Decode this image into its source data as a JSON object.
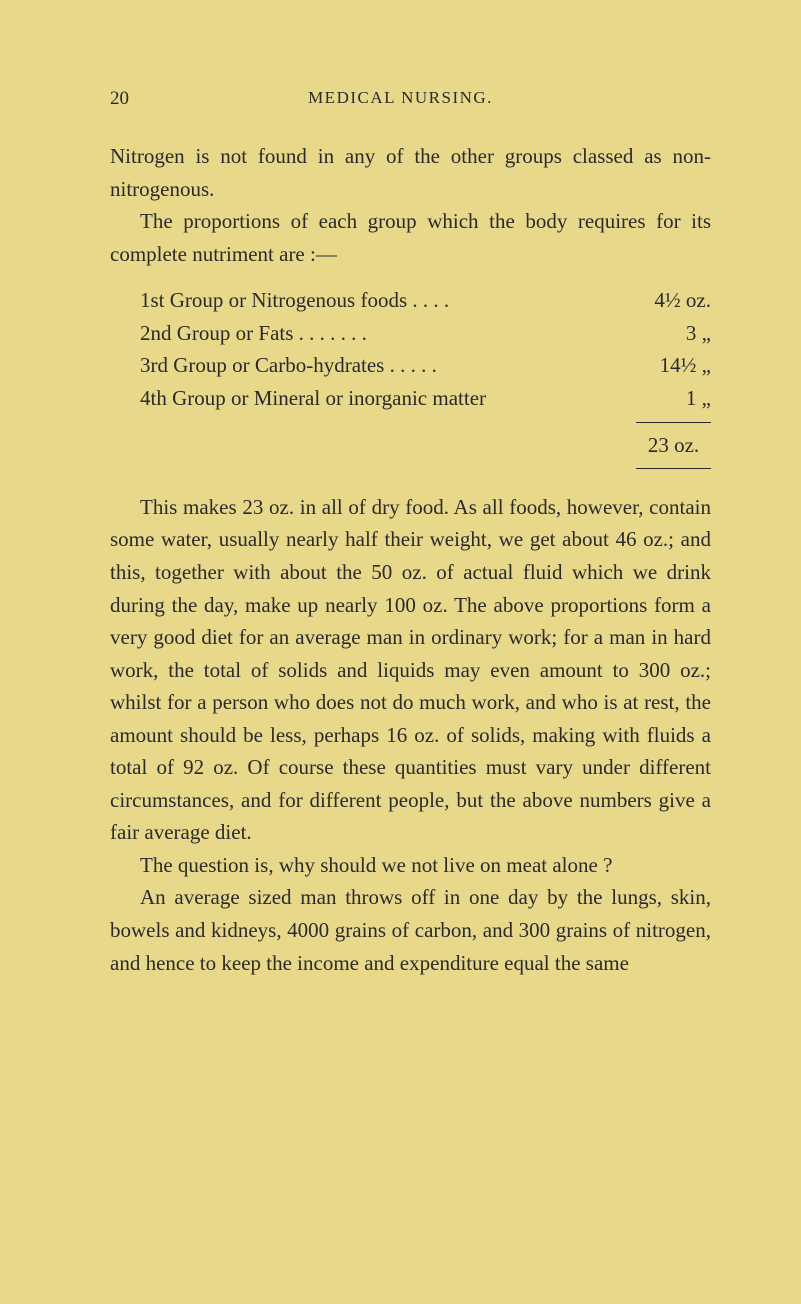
{
  "page": {
    "number": "20",
    "header": "MEDICAL NURSING."
  },
  "para1a": "Nitrogen is not found in any of the other groups classed as non-nitrogenous.",
  "para1b": "The proportions of each group which the body requires for its complete nutriment are :—",
  "groups": {
    "row1": {
      "label": "1st Group or Nitrogenous foods . . . .",
      "value": "4½ oz."
    },
    "row2": {
      "label": "2nd Group or Fats  . . . . . . .",
      "value": "3   „"
    },
    "row3": {
      "label": "3rd Group or Carbo-hydrates . . . . .",
      "value": "14½ „"
    },
    "row4": {
      "label": "4th Group or Mineral or inorganic matter",
      "value": "1   „"
    },
    "total": "23 oz."
  },
  "para2": "This makes 23 oz. in all of dry food. As all foods, however, contain some water, usually nearly half their weight, we get about 46 oz.; and this, together with about the 50 oz. of actual fluid which we drink during the day, make up nearly 100 oz. The above proportions form a very good diet for an average man in ordinary work; for a man in hard work, the total of solids and liquids may even amount to 300 oz.; whilst for a person who does not do much work, and who is at rest, the amount should be less, perhaps 16 oz. of solids, making with fluids a total of 92 oz. Of course these quantities must vary under different circumstances, and for different people, but the above numbers give a fair average diet.",
  "para3": "The question is, why should we not live on meat alone ?",
  "para4": "An average sized man throws off in one day by the lungs, skin, bowels and kidneys, 4000 grains of carbon, and 300 grains of nitrogen, and hence to keep the income and expenditure equal the same"
}
